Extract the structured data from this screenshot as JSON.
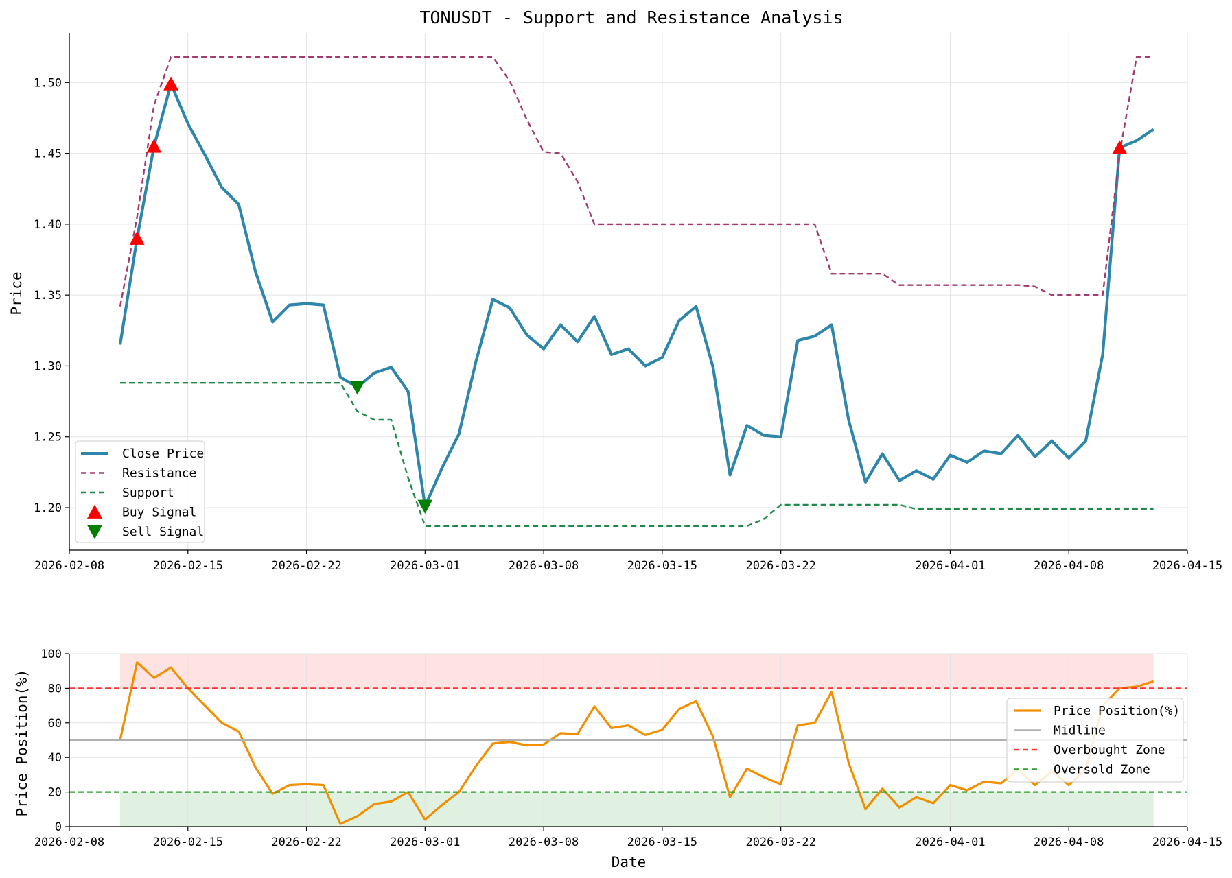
{
  "chart_data": [
    {
      "type": "line",
      "title": "TONUSDT - Support and Resistance Analysis",
      "ylabel": "Price",
      "xlabel": "",
      "xlim": [
        "2026-02-08",
        "2026-04-15"
      ],
      "ylim": [
        1.17,
        1.535
      ],
      "x_ticks": [
        "2026-02-08",
        "2026-02-15",
        "2026-02-22",
        "2026-03-01",
        "2026-03-08",
        "2026-03-15",
        "2026-03-22",
        "2026-04-01",
        "2026-04-08",
        "2026-04-15"
      ],
      "y_ticks": [
        1.2,
        1.25,
        1.3,
        1.35,
        1.4,
        1.45,
        1.5
      ],
      "y_tick_labels": [
        "1.20",
        "1.25",
        "1.30",
        "1.35",
        "1.40",
        "1.45",
        "1.50"
      ],
      "grid": true,
      "legend_position": "lower-left",
      "dates": [
        "2026-02-11",
        "2026-02-12",
        "2026-02-13",
        "2026-02-14",
        "2026-02-15",
        "2026-02-16",
        "2026-02-17",
        "2026-02-18",
        "2026-02-19",
        "2026-02-20",
        "2026-02-21",
        "2026-02-22",
        "2026-02-23",
        "2026-02-24",
        "2026-02-25",
        "2026-02-26",
        "2026-02-27",
        "2026-02-28",
        "2026-03-01",
        "2026-03-02",
        "2026-03-03",
        "2026-03-04",
        "2026-03-05",
        "2026-03-06",
        "2026-03-07",
        "2026-03-08",
        "2026-03-09",
        "2026-03-10",
        "2026-03-11",
        "2026-03-12",
        "2026-03-13",
        "2026-03-14",
        "2026-03-15",
        "2026-03-16",
        "2026-03-17",
        "2026-03-18",
        "2026-03-19",
        "2026-03-20",
        "2026-03-21",
        "2026-03-22",
        "2026-03-23",
        "2026-03-24",
        "2026-03-25",
        "2026-03-26",
        "2026-03-27",
        "2026-03-28",
        "2026-03-29",
        "2026-03-30",
        "2026-03-31",
        "2026-04-01",
        "2026-04-02",
        "2026-04-03",
        "2026-04-04",
        "2026-04-05",
        "2026-04-06",
        "2026-04-07",
        "2026-04-08",
        "2026-04-09",
        "2026-04-10",
        "2026-04-11",
        "2026-04-12",
        "2026-04-13"
      ],
      "series": [
        {
          "name": "Close Price",
          "color": "#2E86AB",
          "style": "solid",
          "values": [
            1.315,
            1.39,
            1.455,
            1.499,
            1.471,
            1.449,
            1.426,
            1.414,
            1.366,
            1.331,
            1.343,
            1.344,
            1.343,
            1.292,
            1.285,
            1.295,
            1.299,
            1.282,
            1.201,
            1.228,
            1.252,
            1.303,
            1.347,
            1.341,
            1.322,
            1.312,
            1.329,
            1.317,
            1.335,
            1.308,
            1.312,
            1.3,
            1.306,
            1.332,
            1.342,
            1.299,
            1.223,
            1.258,
            1.251,
            1.25,
            1.318,
            1.321,
            1.329,
            1.262,
            1.218,
            1.238,
            1.219,
            1.226,
            1.22,
            1.237,
            1.232,
            1.24,
            1.238,
            1.251,
            1.236,
            1.247,
            1.235,
            1.247,
            1.308,
            1.454,
            1.459,
            1.467
          ]
        },
        {
          "name": "Resistance",
          "color": "#A23B72",
          "style": "dashed",
          "values": [
            1.342,
            1.405,
            1.484,
            1.518,
            1.518,
            1.518,
            1.518,
            1.518,
            1.518,
            1.518,
            1.518,
            1.518,
            1.518,
            1.518,
            1.518,
            1.518,
            1.518,
            1.518,
            1.518,
            1.518,
            1.518,
            1.518,
            1.518,
            1.501,
            1.474,
            1.451,
            1.45,
            1.43,
            1.4,
            1.4,
            1.4,
            1.4,
            1.4,
            1.4,
            1.4,
            1.4,
            1.4,
            1.4,
            1.4,
            1.4,
            1.4,
            1.4,
            1.365,
            1.365,
            1.365,
            1.365,
            1.357,
            1.357,
            1.357,
            1.357,
            1.357,
            1.357,
            1.357,
            1.357,
            1.356,
            1.35,
            1.35,
            1.35,
            1.35,
            1.45,
            1.518,
            1.518
          ]
        },
        {
          "name": "Support",
          "color": "#1E8A4A",
          "style": "dashed",
          "values": [
            1.288,
            1.288,
            1.288,
            1.288,
            1.288,
            1.288,
            1.288,
            1.288,
            1.288,
            1.288,
            1.288,
            1.288,
            1.288,
            1.288,
            1.268,
            1.262,
            1.262,
            1.221,
            1.187,
            1.187,
            1.187,
            1.187,
            1.187,
            1.187,
            1.187,
            1.187,
            1.187,
            1.187,
            1.187,
            1.187,
            1.187,
            1.187,
            1.187,
            1.187,
            1.187,
            1.187,
            1.187,
            1.187,
            1.192,
            1.202,
            1.202,
            1.202,
            1.202,
            1.202,
            1.202,
            1.202,
            1.202,
            1.199,
            1.199,
            1.199,
            1.199,
            1.199,
            1.199,
            1.199,
            1.199,
            1.199,
            1.199,
            1.199,
            1.199,
            1.199,
            1.199,
            1.199
          ]
        }
      ],
      "buy_signals": {
        "name": "Buy Signal",
        "color": "#FF0000",
        "points": [
          {
            "date": "2026-02-12",
            "value": 1.39
          },
          {
            "date": "2026-02-13",
            "value": 1.455
          },
          {
            "date": "2026-02-14",
            "value": 1.499
          },
          {
            "date": "2026-04-11",
            "value": 1.454
          }
        ]
      },
      "sell_signals": {
        "name": "Sell Signal",
        "color": "#008000",
        "points": [
          {
            "date": "2026-02-25",
            "value": 1.285
          },
          {
            "date": "2026-03-01",
            "value": 1.201
          }
        ]
      }
    },
    {
      "type": "line",
      "title": "",
      "ylabel": "Price Position(%)",
      "xlabel": "Date",
      "xlim": [
        "2026-02-08",
        "2026-04-15"
      ],
      "ylim": [
        0,
        100
      ],
      "x_ticks": [
        "2026-02-08",
        "2026-02-15",
        "2026-02-22",
        "2026-03-01",
        "2026-03-08",
        "2026-03-15",
        "2026-03-22",
        "2026-04-01",
        "2026-04-08",
        "2026-04-15"
      ],
      "y_ticks": [
        0,
        20,
        40,
        60,
        80,
        100
      ],
      "grid": true,
      "legend_position": "right",
      "series": [
        {
          "name": "Price Position(%)",
          "color": "#F18F01",
          "style": "solid",
          "values": [
            50,
            95,
            86,
            92,
            80,
            70,
            60,
            55,
            34,
            19,
            24,
            24.5,
            24,
            1.5,
            6,
            13,
            14.5,
            20,
            4,
            12.5,
            20,
            35,
            48,
            49,
            47,
            47.5,
            54,
            53.5,
            69.5,
            57,
            58.5,
            53,
            56,
            68,
            72.5,
            52,
            17,
            33.5,
            28.5,
            24.5,
            58.5,
            60,
            78,
            37,
            10,
            22,
            11,
            17,
            13.5,
            24,
            21,
            26,
            25,
            33,
            24,
            32,
            24,
            33,
            70,
            80,
            81,
            84
          ]
        },
        {
          "name": "Midline",
          "color": "#B0B0B0",
          "style": "solid",
          "value": 50
        },
        {
          "name": "Overbought Zone",
          "color": "#FF3333",
          "style": "dashed",
          "value": 80
        },
        {
          "name": "Oversold Zone",
          "color": "#2E9E2E",
          "style": "dashed",
          "value": 20
        }
      ],
      "bands": [
        {
          "from": 80,
          "to": 100,
          "color": "#FFCCCC"
        },
        {
          "from": 0,
          "to": 20,
          "color": "#C8E6C8"
        }
      ]
    }
  ]
}
